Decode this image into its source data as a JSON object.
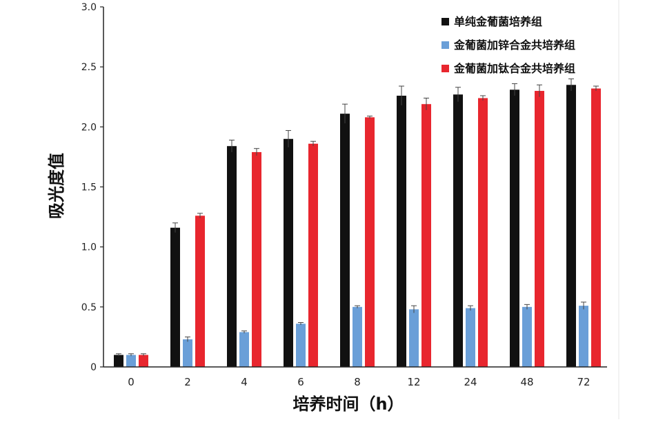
{
  "chart_data": {
    "type": "bar",
    "xlabel": "培养时间（h）",
    "ylabel": "吸光度值",
    "categories": [
      "0",
      "2",
      "4",
      "6",
      "8",
      "12",
      "24",
      "48",
      "72"
    ],
    "ylim": [
      0,
      3.0
    ],
    "yticks": [
      "0",
      "0.5",
      "1.0",
      "1.5",
      "2.0",
      "2.5",
      "3.0"
    ],
    "grid": false,
    "legend_position": "top-right",
    "series": [
      {
        "name": "单纯金葡菌培养组",
        "color": "#111111",
        "values": [
          0.1,
          1.16,
          1.84,
          1.9,
          2.11,
          2.26,
          2.27,
          2.31,
          2.35
        ],
        "errors": [
          0.01,
          0.04,
          0.05,
          0.07,
          0.08,
          0.08,
          0.06,
          0.05,
          0.05
        ]
      },
      {
        "name": "金葡菌加锌合金共培养组",
        "color": "#6a9fd8",
        "values": [
          0.1,
          0.23,
          0.29,
          0.36,
          0.5,
          0.48,
          0.49,
          0.5,
          0.51
        ],
        "errors": [
          0.01,
          0.02,
          0.01,
          0.01,
          0.01,
          0.03,
          0.02,
          0.02,
          0.03
        ]
      },
      {
        "name": "金葡菌加钛合金共培养组",
        "color": "#e8262e",
        "values": [
          0.1,
          1.26,
          1.79,
          1.86,
          2.08,
          2.19,
          2.24,
          2.3,
          2.32
        ],
        "errors": [
          0.01,
          0.02,
          0.03,
          0.02,
          0.01,
          0.05,
          0.02,
          0.05,
          0.02
        ]
      }
    ]
  }
}
